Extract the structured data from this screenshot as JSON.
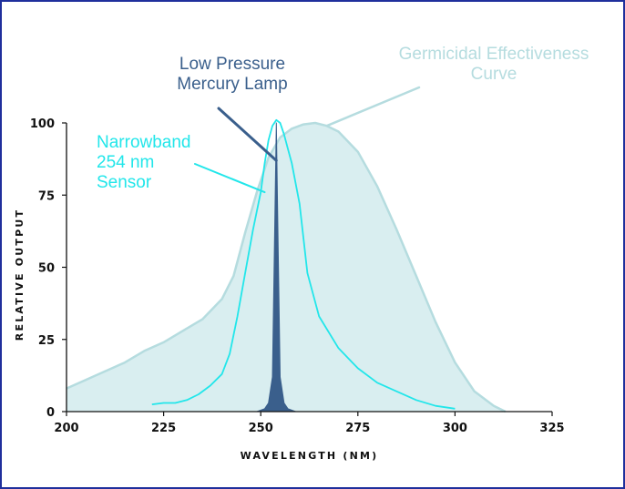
{
  "chart_data": {
    "type": "area",
    "title": "",
    "xlabel": "WAVELENGTH (NM)",
    "ylabel": "RELATIVE OUTPUT",
    "xlim": [
      200,
      325
    ],
    "ylim": [
      0,
      100
    ],
    "xticks": [
      200,
      225,
      250,
      275,
      300,
      325
    ],
    "yticks": [
      0,
      25,
      50,
      75,
      100
    ],
    "grid": false,
    "legend": "none",
    "series": [
      {
        "key": "germicidal",
        "color": "#b5dcdf",
        "fill": "#d9eef0",
        "x": [
          200,
          205,
          210,
          215,
          220,
          225,
          230,
          235,
          240,
          243,
          246,
          249,
          252,
          255,
          258,
          261,
          264,
          267,
          270,
          275,
          280,
          285,
          290,
          295,
          300,
          305,
          310,
          313
        ],
        "y": [
          8,
          11,
          14,
          17,
          21,
          24,
          28,
          32,
          39,
          47,
          62,
          76,
          88,
          95,
          98,
          99.5,
          100,
          99,
          97,
          90,
          78,
          63,
          47,
          31,
          17,
          7,
          2,
          0
        ]
      },
      {
        "key": "narrowband",
        "color": "#22e6ea",
        "x": [
          222,
          225,
          228,
          231,
          234,
          237,
          240,
          242,
          244,
          246,
          248,
          250,
          251,
          252,
          253,
          254,
          255,
          256,
          257,
          258,
          260,
          262,
          265,
          270,
          275,
          280,
          285,
          290,
          295,
          300
        ],
        "y": [
          2.5,
          3,
          3,
          4,
          6,
          9,
          13,
          20,
          33,
          48,
          63,
          76,
          86,
          94,
          99,
          101,
          100,
          96,
          91,
          86,
          72,
          48,
          33,
          22,
          15,
          10,
          7,
          4,
          2,
          1
        ]
      },
      {
        "key": "mercury",
        "color": "#3a5f8c",
        "x": [
          249,
          251,
          252,
          253,
          253.5,
          254,
          254.5,
          255,
          256,
          257,
          259
        ],
        "y": [
          0,
          1,
          3,
          12,
          55,
          100,
          55,
          12,
          3,
          1,
          0
        ]
      }
    ],
    "annotations": [
      {
        "key": "mercury",
        "lines": [
          "Low Pressure",
          "Mercury Lamp"
        ],
        "color": "#3a5f8c",
        "target": [
          254,
          87
        ]
      },
      {
        "key": "germicidal",
        "lines": [
          "Germicidal Effectiveness",
          "Curve"
        ],
        "color": "#b5dcdf",
        "target": [
          267,
          99
        ]
      },
      {
        "key": "narrowband",
        "lines": [
          "Narrowband",
          "254 nm",
          "Sensor"
        ],
        "color": "#22e6ea",
        "target": [
          251,
          76
        ]
      }
    ]
  }
}
